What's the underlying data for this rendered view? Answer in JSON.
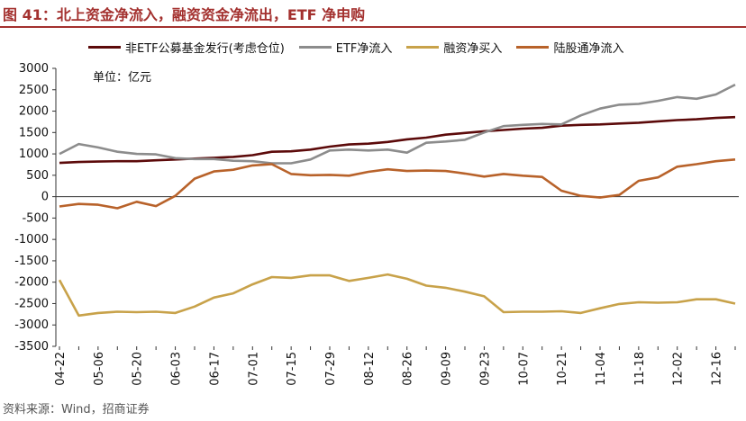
{
  "figure": {
    "title": "图 41：北上资金净流入，融资资金净流出，ETF 净申购",
    "source": "资料来源：Wind，招商证券"
  },
  "chart_data": {
    "type": "line",
    "title": "图 41：北上资金净流入，融资资金净流出，ETF 净申购",
    "unit_label": "单位：亿元",
    "xlabel": "",
    "ylabel": "",
    "ylim": [
      -3500,
      3000
    ],
    "ytick_step": 500,
    "yticks": [
      "3000",
      "2500",
      "2000",
      "1500",
      "1000",
      "500",
      "0",
      "-500",
      "-1000",
      "-1500",
      "-2000",
      "-2500",
      "-3000",
      "-3500"
    ],
    "grid": false,
    "legend_position": "top",
    "x_labels": [
      "04-22",
      "05-06",
      "05-20",
      "06-03",
      "06-17",
      "07-01",
      "07-15",
      "07-29",
      "08-12",
      "08-26",
      "09-09",
      "09-23",
      "10-07",
      "10-21",
      "11-04",
      "11-18",
      "12-02",
      "12-16"
    ],
    "label_every": 2,
    "x": [
      "04-22",
      "04-29",
      "05-06",
      "05-13",
      "05-20",
      "05-27",
      "06-03",
      "06-10",
      "06-17",
      "06-24",
      "07-01",
      "07-08",
      "07-15",
      "07-22",
      "07-29",
      "08-05",
      "08-12",
      "08-19",
      "08-26",
      "09-02",
      "09-09",
      "09-16",
      "09-23",
      "09-30",
      "10-07",
      "10-14",
      "10-21",
      "10-28",
      "11-04",
      "11-11",
      "11-18",
      "11-25",
      "12-02",
      "12-09",
      "12-16",
      "12-23"
    ],
    "series": [
      {
        "name": "非ETF公募基金发行(考虑仓位)",
        "color": "#5c0a0a",
        "values": [
          790,
          810,
          820,
          830,
          830,
          850,
          870,
          890,
          910,
          930,
          970,
          1050,
          1060,
          1100,
          1170,
          1220,
          1240,
          1280,
          1340,
          1380,
          1450,
          1490,
          1530,
          1560,
          1590,
          1610,
          1660,
          1680,
          1690,
          1710,
          1730,
          1760,
          1790,
          1810,
          1840,
          1860
        ]
      },
      {
        "name": "ETF净流入",
        "color": "#8c8c8c",
        "values": [
          1000,
          1230,
          1150,
          1050,
          1000,
          990,
          900,
          880,
          880,
          840,
          830,
          780,
          780,
          870,
          1080,
          1100,
          1080,
          1100,
          1030,
          1260,
          1290,
          1330,
          1500,
          1650,
          1680,
          1700,
          1690,
          1900,
          2060,
          2150,
          2170,
          2240,
          2330,
          2290,
          2390,
          2620
        ]
      },
      {
        "name": "融资净买入",
        "color": "#c8a24a",
        "values": [
          -1950,
          -2780,
          -2720,
          -2690,
          -2700,
          -2690,
          -2720,
          -2570,
          -2360,
          -2260,
          -2050,
          -1880,
          -1900,
          -1840,
          -1840,
          -1970,
          -1900,
          -1820,
          -1920,
          -2080,
          -2130,
          -2220,
          -2330,
          -2700,
          -2690,
          -2690,
          -2680,
          -2720,
          -2610,
          -2510,
          -2470,
          -2480,
          -2470,
          -2400,
          -2400,
          -2500
        ]
      },
      {
        "name": "陆股通净流入",
        "color": "#b8622a",
        "values": [
          -230,
          -170,
          -190,
          -270,
          -120,
          -220,
          20,
          420,
          590,
          630,
          730,
          760,
          530,
          500,
          510,
          490,
          580,
          640,
          600,
          610,
          600,
          540,
          470,
          530,
          490,
          460,
          140,
          20,
          -20,
          40,
          370,
          450,
          700,
          760,
          830,
          870
        ]
      }
    ]
  }
}
